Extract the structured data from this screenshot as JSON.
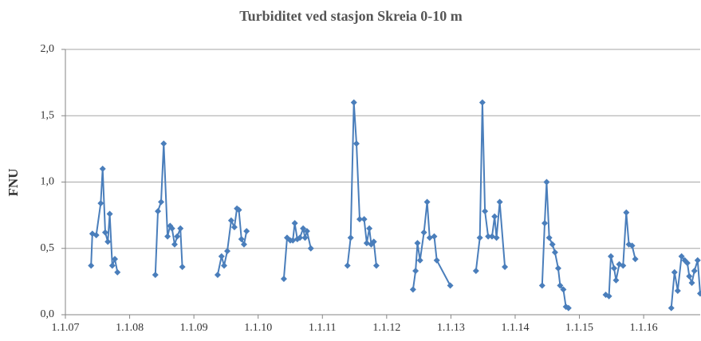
{
  "chart_data": {
    "type": "line",
    "title": "Turbiditet ved stasjon Skreia 0-10 m",
    "y_label": "FNU",
    "x": [
      2007.4,
      2007.42,
      2007.48,
      2007.55,
      2007.58,
      2007.62,
      2007.66,
      2007.69,
      2007.73,
      2007.77,
      2007.81,
      null,
      2008.4,
      2008.44,
      2008.49,
      2008.53,
      2008.59,
      2008.63,
      2008.66,
      2008.7,
      2008.74,
      2008.79,
      2008.82,
      null,
      2009.37,
      2009.43,
      2009.47,
      2009.52,
      2009.58,
      2009.63,
      2009.67,
      2009.7,
      2009.74,
      2009.78,
      2009.82,
      null,
      2010.4,
      2010.45,
      2010.5,
      2010.54,
      2010.57,
      2010.61,
      2010.65,
      2010.7,
      2010.73,
      2010.76,
      2010.82,
      null,
      2011.39,
      2011.44,
      2011.49,
      2011.53,
      2011.58,
      2011.65,
      2011.69,
      2011.73,
      2011.76,
      2011.8,
      2011.84,
      null,
      2012.41,
      2012.45,
      2012.48,
      2012.52,
      2012.58,
      2012.63,
      2012.67,
      2012.74,
      2012.78,
      2012.99,
      null,
      2013.39,
      2013.45,
      2013.49,
      2013.53,
      2013.58,
      2013.64,
      2013.68,
      2013.71,
      2013.76,
      2013.84,
      null,
      2014.42,
      2014.46,
      2014.49,
      2014.53,
      2014.58,
      2014.62,
      2014.67,
      2014.7,
      2014.75,
      2014.79,
      2014.83,
      null,
      2015.41,
      2015.46,
      2015.49,
      2015.54,
      2015.57,
      2015.62,
      2015.68,
      2015.73,
      2015.77,
      2015.82,
      2015.87,
      null,
      2016.43,
      2016.48,
      2016.53,
      2016.59,
      2016.64,
      2016.68,
      2016.71,
      2016.75,
      2016.79,
      2016.84,
      2016.88
    ],
    "series": [
      {
        "color": "#4a7ebb",
        "values": [
          0.37,
          0.61,
          0.6,
          0.84,
          1.1,
          0.62,
          0.55,
          0.76,
          0.37,
          0.42,
          0.32,
          null,
          0.3,
          0.78,
          0.85,
          1.29,
          0.59,
          0.67,
          0.65,
          0.53,
          0.59,
          0.65,
          0.36,
          null,
          0.3,
          0.44,
          0.37,
          0.48,
          0.71,
          0.66,
          0.8,
          0.79,
          0.57,
          0.53,
          0.63,
          null,
          0.27,
          0.58,
          0.56,
          0.56,
          0.69,
          0.57,
          0.58,
          0.65,
          0.58,
          0.63,
          0.5,
          null,
          0.37,
          0.58,
          1.6,
          1.29,
          0.72,
          0.72,
          0.54,
          0.65,
          0.53,
          0.55,
          0.37,
          null,
          0.19,
          0.33,
          0.54,
          0.41,
          0.62,
          0.85,
          0.58,
          0.59,
          0.41,
          0.22,
          null,
          0.33,
          0.58,
          1.6,
          0.78,
          0.59,
          0.59,
          0.74,
          0.58,
          0.85,
          0.36,
          null,
          0.22,
          0.69,
          1.0,
          0.58,
          0.53,
          0.47,
          0.35,
          0.22,
          0.19,
          0.06,
          0.05,
          null,
          0.15,
          0.14,
          0.44,
          0.35,
          0.26,
          0.38,
          0.37,
          0.77,
          0.53,
          0.52,
          0.42,
          null,
          0.05,
          0.32,
          0.18,
          0.44,
          0.41,
          0.39,
          0.29,
          0.24,
          0.33,
          0.41,
          0.16
        ]
      }
    ],
    "xlim": [
      2007,
      2016.88
    ],
    "xticks": [
      {
        "value": 2007,
        "label": "1.1.07"
      },
      {
        "value": 2008,
        "label": "1.1.08"
      },
      {
        "value": 2009,
        "label": "1.1.09"
      },
      {
        "value": 2010,
        "label": "1.1.10"
      },
      {
        "value": 2011,
        "label": "1.1.11"
      },
      {
        "value": 2012,
        "label": "1.1.12"
      },
      {
        "value": 2013,
        "label": "1.1.13"
      },
      {
        "value": 2014,
        "label": "1.1.14"
      },
      {
        "value": 2015,
        "label": "1.1.15"
      },
      {
        "value": 2016,
        "label": "1.1.16"
      }
    ],
    "ylim": [
      0,
      2
    ],
    "yticks": [
      {
        "value": 0,
        "label": "0,0"
      },
      {
        "value": 0.5,
        "label": "0,5"
      },
      {
        "value": 1,
        "label": "1,0"
      },
      {
        "value": 1.5,
        "label": "1,5"
      },
      {
        "value": 2,
        "label": "2,0"
      }
    ],
    "grid": true
  }
}
